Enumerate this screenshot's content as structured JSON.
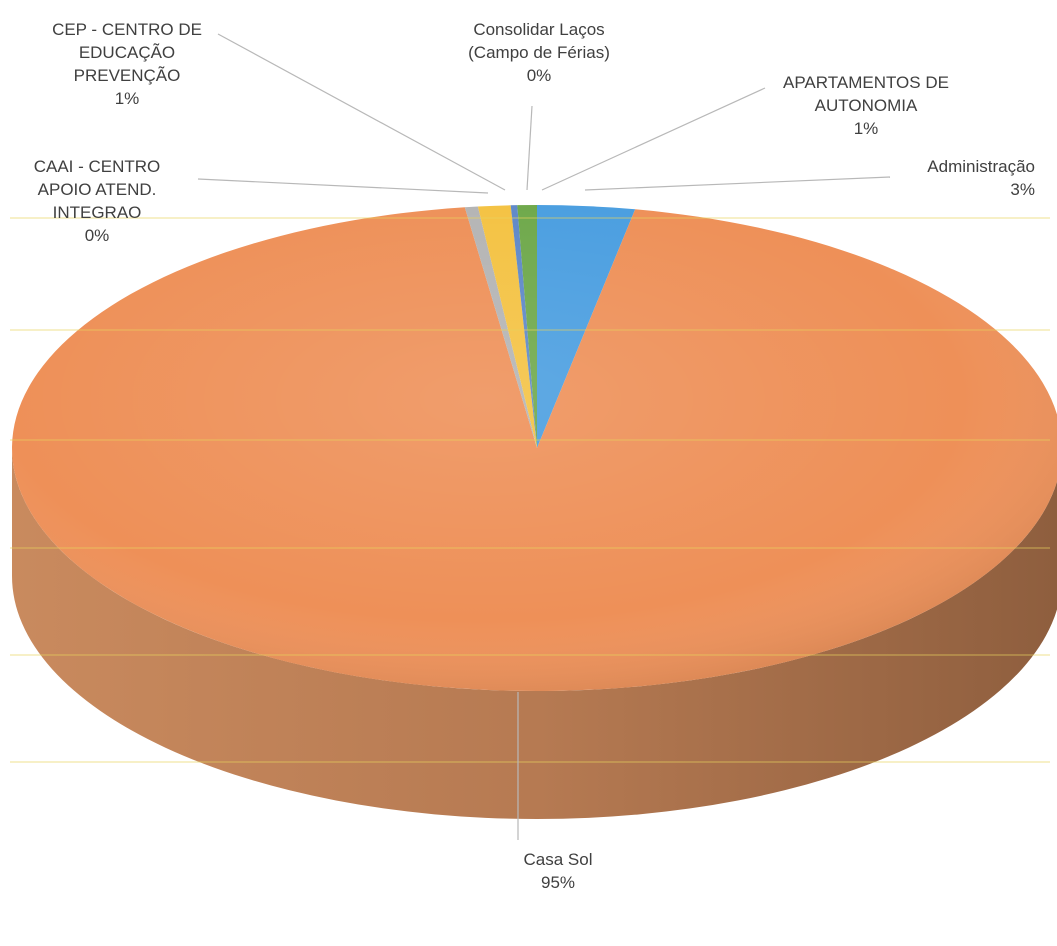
{
  "chart_data": {
    "type": "pie",
    "title": "",
    "slices": [
      {
        "label_lines": [
          "Administração"
        ],
        "value_label": "3%",
        "value": 3,
        "color": "#4a9ee0"
      },
      {
        "label_lines": [
          "Casa Sol"
        ],
        "value_label": "95%",
        "value": 95,
        "color": "#ee9058"
      },
      {
        "label_lines": [
          "CAAI - CENTRO",
          "APOIO ATEND.",
          "INTEGRAO"
        ],
        "value_label": "0%",
        "value": 0.4,
        "color": "#b4b4b4"
      },
      {
        "label_lines": [
          "CEP - CENTRO DE",
          "EDUCAÇÃO",
          "PREVENÇÃO"
        ],
        "value_label": "1%",
        "value": 1,
        "color": "#f4c242"
      },
      {
        "label_lines": [
          "Consolidar Laços",
          "(Campo de Férias)"
        ],
        "value_label": "0%",
        "value": 0.2,
        "color": "#5e88c8"
      },
      {
        "label_lines": [
          "APARTAMENTOS DE",
          "AUTONOMIA"
        ],
        "value_label": "1%",
        "value": 0.6,
        "color": "#6ea84a"
      }
    ],
    "legend": "none",
    "style": "3d-pie"
  }
}
